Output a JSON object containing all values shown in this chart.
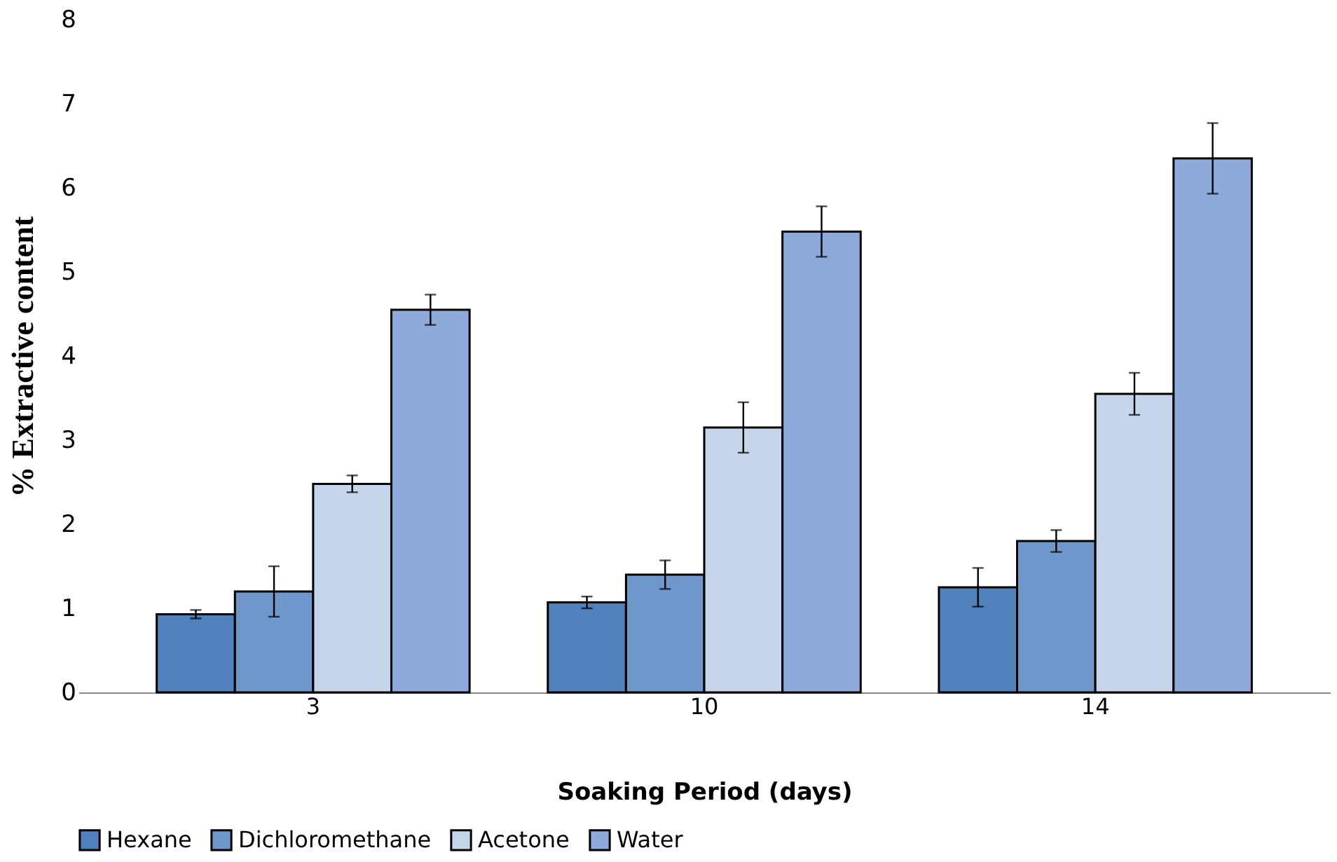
{
  "chart_data": {
    "type": "bar",
    "xlabel": "Soaking Period (days)",
    "ylabel": "% Extractive content",
    "categories": [
      "3",
      "10",
      "14"
    ],
    "series": [
      {
        "name": "Hexane",
        "color": "#4f81bd",
        "values": [
          0.93,
          1.07,
          1.25
        ],
        "errors": [
          0.05,
          0.07,
          0.23
        ]
      },
      {
        "name": "Dichloromethane",
        "color": "#6f97cb",
        "values": [
          1.2,
          1.4,
          1.8
        ],
        "errors": [
          0.3,
          0.17,
          0.13
        ]
      },
      {
        "name": "Acetone",
        "color": "#c5d5ea",
        "values": [
          2.48,
          3.15,
          3.55
        ],
        "errors": [
          0.1,
          0.3,
          0.25
        ]
      },
      {
        "name": "Water",
        "color": "#8eaadb",
        "values": [
          4.55,
          5.48,
          6.35
        ],
        "errors": [
          0.18,
          0.3,
          0.42
        ]
      }
    ],
    "ylim": [
      0,
      8
    ],
    "yticks": [
      0,
      1,
      2,
      3,
      4,
      5,
      6,
      7,
      8
    ],
    "grid": false,
    "legend": "bottom"
  }
}
